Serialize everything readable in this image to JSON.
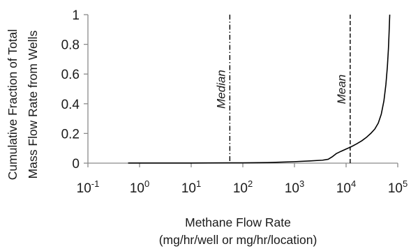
{
  "chart_data": {
    "type": "line",
    "xscale": "log10",
    "xlim": [
      0.1,
      100000
    ],
    "ylim": [
      0,
      1
    ],
    "x_ticks": [
      0.1,
      1,
      10,
      100,
      1000,
      10000,
      100000
    ],
    "x_tick_labels": [
      {
        "base": "10",
        "exp": "-1"
      },
      {
        "base": "10",
        "exp": "0"
      },
      {
        "base": "10",
        "exp": "1"
      },
      {
        "base": "10",
        "exp": "2"
      },
      {
        "base": "10",
        "exp": "3"
      },
      {
        "base": "10",
        "exp": "4"
      },
      {
        "base": "10",
        "exp": "5"
      }
    ],
    "y_ticks": [
      0,
      0.2,
      0.4,
      0.6,
      0.8,
      1
    ],
    "y_tick_labels": [
      "0",
      "0.2",
      "0.4",
      "0.6",
      "0.8",
      "1"
    ],
    "ylabel_lines": [
      "Cumulative Fraction of Total",
      "Mass Flow Rate from Wells"
    ],
    "xlabel_lines": [
      "Methane Flow Rate",
      "(mg/hr/well or mg/hr/location)"
    ],
    "grid": false,
    "series": [
      {
        "color": "#000000",
        "points": [
          [
            0.6,
            0.001
          ],
          [
            1,
            0.001
          ],
          [
            10,
            0.001
          ],
          [
            50,
            0.002
          ],
          [
            100,
            0.002
          ],
          [
            300,
            0.004
          ],
          [
            1000,
            0.01
          ],
          [
            2000,
            0.015
          ],
          [
            3500,
            0.02
          ],
          [
            4500,
            0.026
          ],
          [
            5500,
            0.045
          ],
          [
            6500,
            0.065
          ],
          [
            8000,
            0.08
          ],
          [
            10000,
            0.095
          ],
          [
            12500,
            0.11
          ],
          [
            16000,
            0.13
          ],
          [
            20000,
            0.15
          ],
          [
            25000,
            0.175
          ],
          [
            30000,
            0.2
          ],
          [
            36000,
            0.23
          ],
          [
            42000,
            0.27
          ],
          [
            48000,
            0.33
          ],
          [
            54000,
            0.42
          ],
          [
            59000,
            0.53
          ],
          [
            63000,
            0.65
          ],
          [
            66000,
            0.77
          ],
          [
            68000,
            0.88
          ],
          [
            70000,
            1.0
          ]
        ]
      }
    ],
    "reference_lines": [
      {
        "label": "Median",
        "x": 56,
        "style": "dashdot"
      },
      {
        "label": "Mean",
        "x": 12000,
        "style": "dashed"
      }
    ]
  }
}
